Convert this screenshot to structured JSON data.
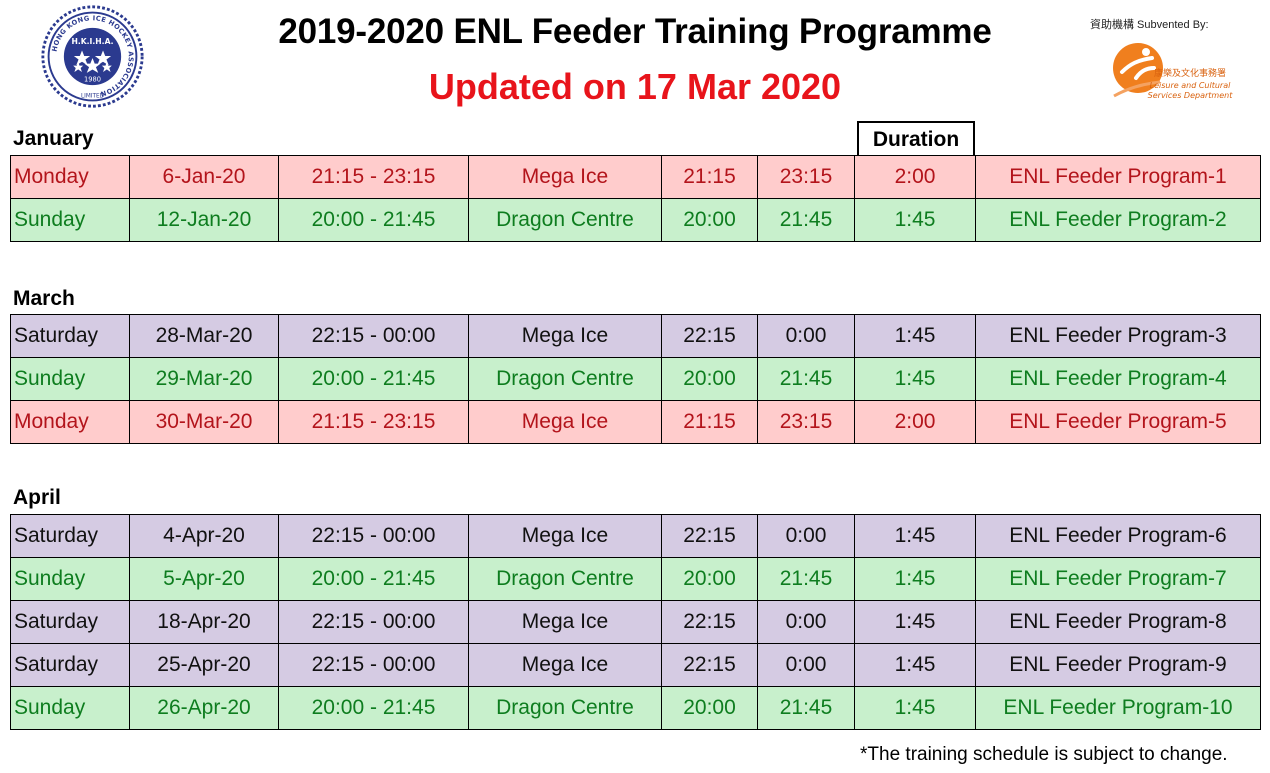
{
  "header": {
    "title": "2019-2020 ENL Feeder Training Programme",
    "subtitle": "Updated on 17 Mar 2020",
    "subtitle_color": "#e8141b",
    "logo_left": {
      "ring_text": "HONG KONG ICE HOCKEY ASSOCIATION",
      "abbr": "H.K.I.H.A.",
      "year": "1980",
      "bottom": "LIMITED"
    },
    "sponsor_label": "資助機構 Subvented By:",
    "sponsor_logo": {
      "zh": "康樂及文化事務署",
      "en1": "Leisure and Cultural",
      "en2": "Services Department"
    }
  },
  "duration_header": "Duration",
  "sections": [
    {
      "month": "January",
      "rows": [
        {
          "day": "Monday",
          "date": "6-Jan-20",
          "time": "21:15 - 23:15",
          "venue": "Mega Ice",
          "start": "21:15",
          "end": "23:15",
          "duration": "2:00",
          "program": "ENL Feeder Program-1"
        },
        {
          "day": "Sunday",
          "date": "12-Jan-20",
          "time": "20:00 - 21:45",
          "venue": "Dragon Centre",
          "start": "20:00",
          "end": "21:45",
          "duration": "1:45",
          "program": "ENL Feeder Program-2"
        }
      ]
    },
    {
      "month": "March",
      "rows": [
        {
          "day": "Saturday",
          "date": "28-Mar-20",
          "time": "22:15 - 00:00",
          "venue": "Mega Ice",
          "start": "22:15",
          "end": "0:00",
          "duration": "1:45",
          "program": "ENL Feeder Program-3"
        },
        {
          "day": "Sunday",
          "date": "29-Mar-20",
          "time": "20:00 - 21:45",
          "venue": "Dragon Centre",
          "start": "20:00",
          "end": "21:45",
          "duration": "1:45",
          "program": "ENL Feeder Program-4"
        },
        {
          "day": "Monday",
          "date": "30-Mar-20",
          "time": "21:15 - 23:15",
          "venue": "Mega Ice",
          "start": "21:15",
          "end": "23:15",
          "duration": "2:00",
          "program": "ENL Feeder Program-5"
        }
      ]
    },
    {
      "month": "April",
      "rows": [
        {
          "day": "Saturday",
          "date": "4-Apr-20",
          "time": "22:15 - 00:00",
          "venue": "Mega Ice",
          "start": "22:15",
          "end": "0:00",
          "duration": "1:45",
          "program": "ENL Feeder Program-6"
        },
        {
          "day": "Sunday",
          "date": "5-Apr-20",
          "time": "20:00 - 21:45",
          "venue": "Dragon Centre",
          "start": "20:00",
          "end": "21:45",
          "duration": "1:45",
          "program": "ENL Feeder Program-7"
        },
        {
          "day": "Saturday",
          "date": "18-Apr-20",
          "time": "22:15 - 00:00",
          "venue": "Mega Ice",
          "start": "22:15",
          "end": "0:00",
          "duration": "1:45",
          "program": "ENL Feeder Program-8"
        },
        {
          "day": "Saturday",
          "date": "25-Apr-20",
          "time": "22:15 - 00:00",
          "venue": "Mega Ice",
          "start": "22:15",
          "end": "0:00",
          "duration": "1:45",
          "program": "ENL Feeder Program-9"
        },
        {
          "day": "Sunday",
          "date": "26-Apr-20",
          "time": "20:00 - 21:45",
          "venue": "Dragon Centre",
          "start": "20:00",
          "end": "21:45",
          "duration": "1:45",
          "program": "ENL Feeder Program-10"
        }
      ]
    }
  ],
  "row_colors": {
    "Monday": {
      "bg": "#ffcccc",
      "text": "#b3141b"
    },
    "Sunday": {
      "bg": "#c8f0cc",
      "text": "#0e7d1f"
    },
    "Saturday": {
      "bg": "#d5cbe3",
      "text": "#111111"
    }
  },
  "footnote": "*The training schedule is subject to change."
}
